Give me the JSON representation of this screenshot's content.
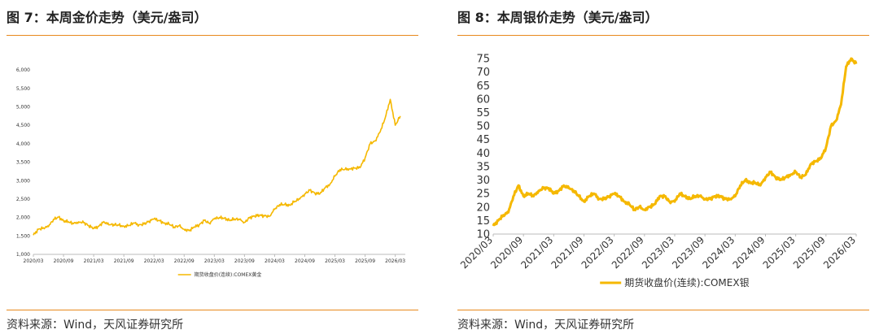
{
  "panels": [
    {
      "title": "图 7：本周金价走势（美元/盎司）",
      "source": "资料来源：Wind，天风证券研究所"
    },
    {
      "title": "图 8：本周银价走势（美元/盎司）",
      "source": "资料来源：Wind，天风证券研究所"
    }
  ],
  "colors": {
    "line": "#f5b800",
    "rule": "#e8891c",
    "axis": "#bbbbbb"
  },
  "chart_data": [
    {
      "type": "line",
      "ylim": [
        1000,
        6000
      ],
      "yticks": [
        "1,000",
        "1,500",
        "2,000",
        "2,500",
        "3,000",
        "3,500",
        "4,000",
        "4,500",
        "5,000",
        "5,500",
        "6,000"
      ],
      "ytick_values": [
        1000,
        1500,
        2000,
        2500,
        3000,
        3500,
        4000,
        4500,
        5000,
        5500,
        6000
      ],
      "xticks": [
        "2020/03",
        "2020/09",
        "2021/03",
        "2021/09",
        "2022/03",
        "2022/09",
        "2023/03",
        "2023/09",
        "2024/03",
        "2024/09",
        "2025/03",
        "2025/09",
        "2026/03"
      ],
      "xlim": [
        "2020/03",
        "2026/05"
      ],
      "legend": "期货收盘价(连续):COMEX黄金",
      "legend_position": "bottom-center",
      "series": [
        {
          "name": "期货收盘价(连续):COMEX黄金",
          "x": [
            "2020/03",
            "2020/04",
            "2020/05",
            "2020/06",
            "2020/07",
            "2020/08",
            "2020/09",
            "2020/10",
            "2020/11",
            "2020/12",
            "2021/01",
            "2021/02",
            "2021/03",
            "2021/04",
            "2021/05",
            "2021/06",
            "2021/07",
            "2021/08",
            "2021/09",
            "2021/10",
            "2021/11",
            "2021/12",
            "2022/01",
            "2022/02",
            "2022/03",
            "2022/04",
            "2022/05",
            "2022/06",
            "2022/07",
            "2022/08",
            "2022/09",
            "2022/10",
            "2022/11",
            "2022/12",
            "2023/01",
            "2023/02",
            "2023/03",
            "2023/04",
            "2023/05",
            "2023/06",
            "2023/07",
            "2023/08",
            "2023/09",
            "2023/10",
            "2023/11",
            "2023/12",
            "2024/01",
            "2024/02",
            "2024/03",
            "2024/04",
            "2024/05",
            "2024/06",
            "2024/07",
            "2024/08",
            "2024/09",
            "2024/10",
            "2024/11",
            "2024/12",
            "2025/01",
            "2025/02",
            "2025/03",
            "2025/04",
            "2025/05",
            "2025/06",
            "2025/07",
            "2025/08",
            "2025/09",
            "2025/10",
            "2025/11",
            "2025/12",
            "2026/01",
            "2026/02",
            "2026/03",
            "2026/04"
          ],
          "y": [
            1520,
            1680,
            1720,
            1750,
            1950,
            2010,
            1910,
            1880,
            1830,
            1880,
            1860,
            1780,
            1700,
            1760,
            1890,
            1800,
            1810,
            1790,
            1760,
            1780,
            1850,
            1800,
            1820,
            1900,
            1960,
            1920,
            1850,
            1820,
            1740,
            1770,
            1680,
            1640,
            1740,
            1800,
            1920,
            1850,
            1960,
            2000,
            1980,
            1920,
            1960,
            1940,
            1870,
            1990,
            2040,
            2060,
            2040,
            2040,
            2220,
            2350,
            2350,
            2330,
            2440,
            2500,
            2640,
            2740,
            2660,
            2640,
            2800,
            2900,
            3120,
            3300,
            3300,
            3320,
            3340,
            3350,
            3620,
            4000,
            4080,
            4320,
            4700,
            5200,
            4500,
            4750
          ]
        }
      ]
    },
    {
      "type": "line",
      "ylim": [
        10,
        75
      ],
      "yticks": [
        "10",
        "15",
        "20",
        "25",
        "30",
        "35",
        "40",
        "45",
        "50",
        "55",
        "60",
        "65",
        "70",
        "75"
      ],
      "ytick_values": [
        10,
        15,
        20,
        25,
        30,
        35,
        40,
        45,
        50,
        55,
        60,
        65,
        70,
        75
      ],
      "xticks": [
        "2020/03",
        "2020/09",
        "2021/03",
        "2021/09",
        "2022/03",
        "2022/09",
        "2023/03",
        "2023/09",
        "2024/03",
        "2024/09",
        "2025/03",
        "2025/09",
        "2026/03"
      ],
      "xlim": [
        "2020/03",
        "2026/03"
      ],
      "legend": "期货收盘价(连续):COMEX银",
      "legend_position": "bottom-center",
      "series": [
        {
          "name": "期货收盘价(连续):COMEX银",
          "x": [
            "2020/03",
            "2020/04",
            "2020/05",
            "2020/06",
            "2020/07",
            "2020/08",
            "2020/09",
            "2020/10",
            "2020/11",
            "2020/12",
            "2021/01",
            "2021/02",
            "2021/03",
            "2021/04",
            "2021/05",
            "2021/06",
            "2021/07",
            "2021/08",
            "2021/09",
            "2021/10",
            "2021/11",
            "2021/12",
            "2022/01",
            "2022/02",
            "2022/03",
            "2022/04",
            "2022/05",
            "2022/06",
            "2022/07",
            "2022/08",
            "2022/09",
            "2022/10",
            "2022/11",
            "2022/12",
            "2023/01",
            "2023/02",
            "2023/03",
            "2023/04",
            "2023/05",
            "2023/06",
            "2023/07",
            "2023/08",
            "2023/09",
            "2023/10",
            "2023/11",
            "2023/12",
            "2024/01",
            "2024/02",
            "2024/03",
            "2024/04",
            "2024/05",
            "2024/06",
            "2024/07",
            "2024/08",
            "2024/09",
            "2024/10",
            "2024/11",
            "2024/12",
            "2025/01",
            "2025/02",
            "2025/03",
            "2025/04",
            "2025/05",
            "2025/06",
            "2025/07",
            "2025/08",
            "2025/09",
            "2025/10",
            "2025/11",
            "2025/12",
            "2026/01",
            "2026/02",
            "2026/03"
          ],
          "y": [
            13,
            15,
            17,
            18,
            24,
            28,
            24,
            25,
            24,
            26,
            27,
            27,
            25,
            26,
            28,
            27,
            26,
            24,
            22,
            24,
            25,
            23,
            23,
            24,
            25,
            24,
            22,
            21,
            19,
            20,
            19,
            20,
            21,
            24,
            24,
            22,
            22,
            25,
            24,
            23,
            24,
            24,
            23,
            23,
            24,
            24,
            23,
            23,
            24,
            28,
            30,
            29,
            29,
            28,
            31,
            33,
            31,
            30,
            31,
            32,
            33,
            31,
            32,
            36,
            37,
            38,
            42,
            50,
            52,
            58,
            72,
            75,
            73
          ]
        }
      ]
    }
  ]
}
